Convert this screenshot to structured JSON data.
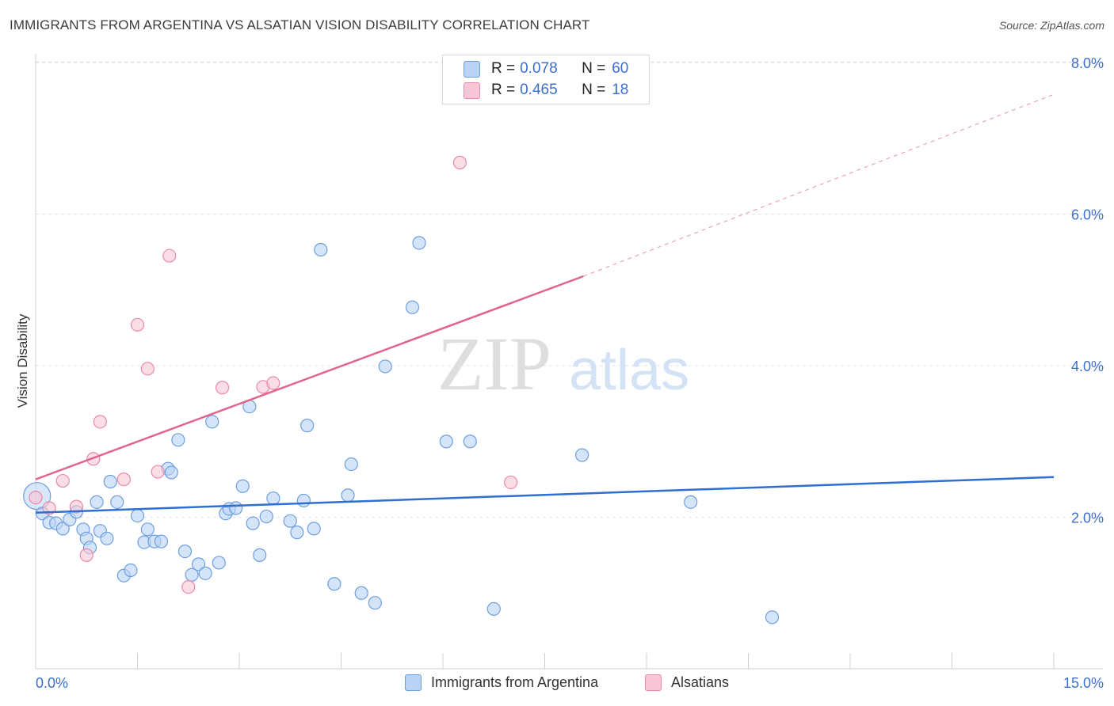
{
  "title": "IMMIGRANTS FROM ARGENTINA VS ALSATIAN VISION DISABILITY CORRELATION CHART",
  "source": "Source: ZipAtlas.com",
  "watermark": {
    "zip": "ZIP",
    "atlas": "atlas"
  },
  "legend": {
    "rows": [
      {
        "r_label": "R =",
        "r_value": "0.078",
        "n_label": "N =",
        "n_value": "60"
      },
      {
        "r_label": "R =",
        "r_value": "0.465",
        "n_label": "N =",
        "n_value": "18"
      }
    ]
  },
  "bottom_legend": [
    {
      "label": "Immigrants from Argentina"
    },
    {
      "label": "Alsatians"
    }
  ],
  "colors": {
    "blue_fill": "#b8d3f5",
    "blue_stroke": "#6f9ee0",
    "blue_line": "#2f6fd1",
    "pink_fill": "#f8c6d6",
    "pink_stroke": "#e88aa8",
    "pink_line": "#e0648c",
    "axis_text": "#3a6fd0",
    "grid": "#e3e3e3"
  },
  "chart_data": {
    "type": "scatter",
    "title": "IMMIGRANTS FROM ARGENTINA VS ALSATIAN VISION DISABILITY CORRELATION CHART",
    "xlabel": "",
    "ylabel": "Vision Disability",
    "xlim": [
      0,
      15
    ],
    "ylim": [
      0,
      8.1
    ],
    "x_tick_labels": [
      "0.0%",
      "15.0%"
    ],
    "y_ticks": [
      2,
      4,
      6,
      8
    ],
    "y_tick_labels": [
      "2.0%",
      "4.0%",
      "6.0%",
      "8.0%"
    ],
    "grid": true,
    "legend_position": "top-center",
    "series": [
      {
        "name": "Immigrants from Argentina",
        "color": "#6f9ee0",
        "points": [
          [
            0.02,
            2.28
          ],
          [
            0.1,
            2.05
          ],
          [
            0.2,
            1.93
          ],
          [
            0.3,
            1.92
          ],
          [
            0.4,
            1.85
          ],
          [
            0.5,
            1.97
          ],
          [
            0.6,
            2.07
          ],
          [
            0.7,
            1.84
          ],
          [
            0.75,
            1.72
          ],
          [
            0.8,
            1.6
          ],
          [
            0.9,
            2.2
          ],
          [
            0.95,
            1.82
          ],
          [
            1.05,
            1.72
          ],
          [
            1.1,
            2.47
          ],
          [
            1.2,
            2.2
          ],
          [
            1.3,
            1.23
          ],
          [
            1.4,
            1.3
          ],
          [
            1.5,
            2.02
          ],
          [
            1.6,
            1.67
          ],
          [
            1.65,
            1.84
          ],
          [
            1.75,
            1.68
          ],
          [
            1.85,
            1.68
          ],
          [
            1.95,
            2.64
          ],
          [
            2.0,
            2.59
          ],
          [
            2.1,
            3.02
          ],
          [
            2.2,
            1.55
          ],
          [
            2.3,
            1.24
          ],
          [
            2.4,
            1.38
          ],
          [
            2.5,
            1.26
          ],
          [
            2.6,
            3.26
          ],
          [
            2.7,
            1.4
          ],
          [
            2.8,
            2.05
          ],
          [
            2.85,
            2.11
          ],
          [
            2.95,
            2.12
          ],
          [
            3.05,
            2.41
          ],
          [
            3.15,
            3.46
          ],
          [
            3.2,
            1.92
          ],
          [
            3.3,
            1.5
          ],
          [
            3.4,
            2.01
          ],
          [
            3.5,
            2.25
          ],
          [
            3.75,
            1.95
          ],
          [
            3.85,
            1.8
          ],
          [
            3.95,
            2.22
          ],
          [
            4.0,
            3.21
          ],
          [
            4.1,
            1.85
          ],
          [
            4.2,
            5.53
          ],
          [
            4.4,
            1.12
          ],
          [
            4.6,
            2.29
          ],
          [
            4.65,
            2.7
          ],
          [
            4.8,
            1.0
          ],
          [
            5.15,
            3.99
          ],
          [
            5.0,
            0.87
          ],
          [
            5.55,
            4.77
          ],
          [
            5.65,
            5.62
          ],
          [
            6.05,
            3.0
          ],
          [
            6.4,
            3.0
          ],
          [
            6.75,
            0.79
          ],
          [
            8.05,
            2.82
          ],
          [
            9.65,
            2.2
          ],
          [
            10.85,
            0.68
          ]
        ],
        "trend": {
          "x0": 0,
          "y0": 2.06,
          "x1": 15,
          "y1": 2.53
        }
      },
      {
        "name": "Alsatians",
        "color": "#e88aa8",
        "points": [
          [
            0.0,
            2.26
          ],
          [
            0.2,
            2.12
          ],
          [
            0.4,
            2.48
          ],
          [
            0.6,
            2.14
          ],
          [
            0.75,
            1.5
          ],
          [
            0.85,
            2.77
          ],
          [
            0.95,
            3.26
          ],
          [
            1.3,
            2.5
          ],
          [
            1.5,
            4.54
          ],
          [
            1.65,
            3.96
          ],
          [
            1.8,
            2.6
          ],
          [
            1.97,
            5.45
          ],
          [
            2.25,
            1.08
          ],
          [
            2.75,
            3.71
          ],
          [
            3.35,
            3.72
          ],
          [
            3.5,
            3.77
          ],
          [
            6.25,
            6.68
          ],
          [
            7.0,
            2.46
          ]
        ],
        "trend": {
          "x0": 0,
          "y0": 2.5,
          "x1": 8.07,
          "y1": 5.18
        },
        "trend_extension": {
          "x0": 8.07,
          "y0": 5.18,
          "x1": 15,
          "y1": 7.58
        }
      }
    ]
  }
}
